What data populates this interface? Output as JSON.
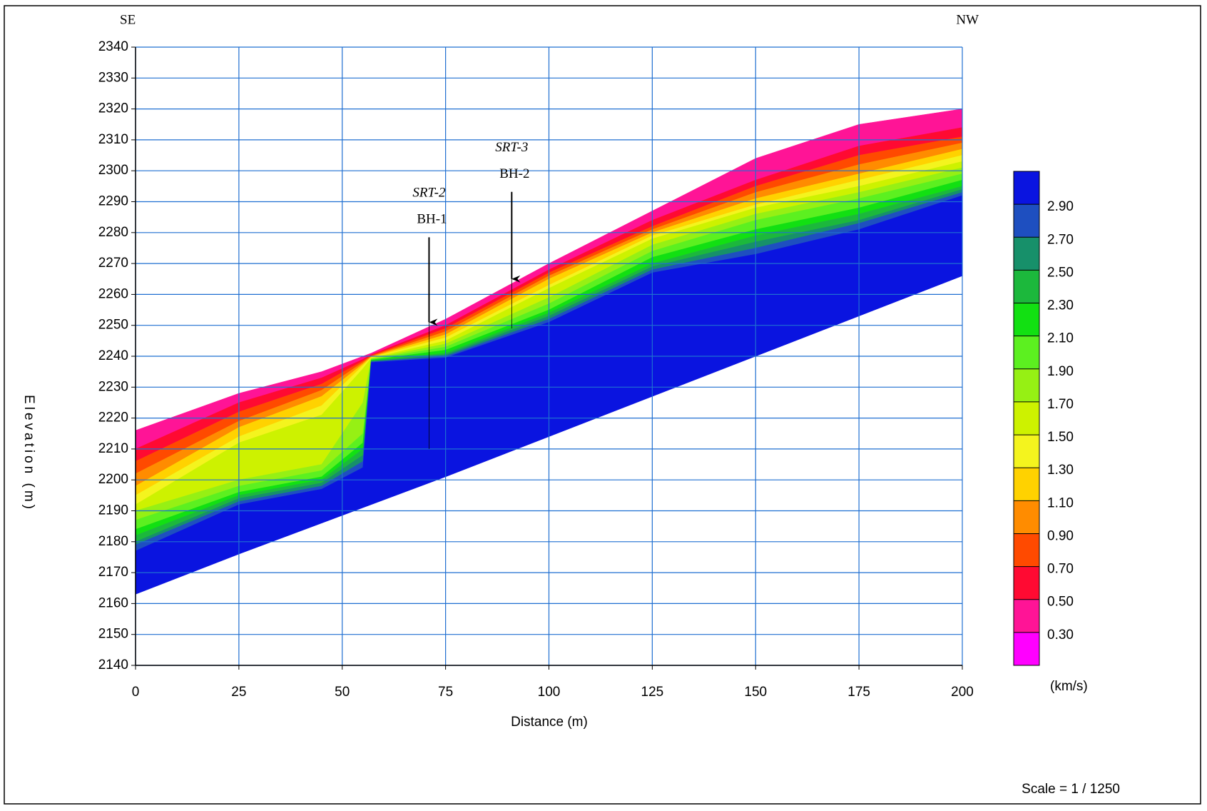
{
  "chart_data": {
    "type": "contour-section",
    "left_label": "SE",
    "right_label": "NW",
    "xlabel": "Distance (m)",
    "ylabel": "Elevation (m)",
    "scale_note": "Scale = 1 / 1250",
    "xlim": [
      0,
      200
    ],
    "xticks": [
      0,
      25,
      50,
      75,
      100,
      125,
      150,
      175,
      200
    ],
    "ylim": [
      2140,
      2340
    ],
    "yticks": [
      2140,
      2150,
      2160,
      2170,
      2180,
      2190,
      2200,
      2210,
      2220,
      2230,
      2240,
      2250,
      2260,
      2270,
      2280,
      2290,
      2300,
      2310,
      2320,
      2330,
      2340
    ],
    "grid": true,
    "grid_color": "#1f6fd1",
    "x": [
      0,
      25,
      45,
      55,
      57,
      75,
      100,
      125,
      150,
      175,
      200
    ],
    "surface": [
      2216,
      2228,
      2235,
      2240,
      2241,
      2252,
      2270,
      2287,
      2304,
      2315,
      2320
    ],
    "bottom": [
      2163,
      2176,
      2186,
      2191,
      2192,
      2201,
      2214,
      2227,
      2240,
      2253,
      2266
    ],
    "contours": [
      {
        "level": 0.5,
        "values": [
          2210,
          2225,
          2233,
          2239,
          2240.5,
          2250,
          2268,
          2284,
          2297,
          2308,
          2314
        ]
      },
      {
        "level": 0.7,
        "values": [
          2206,
          2222,
          2231,
          2238.5,
          2240.2,
          2249,
          2267,
          2282,
          2295,
          2305,
          2311
        ]
      },
      {
        "level": 0.9,
        "values": [
          2202,
          2219,
          2229,
          2238,
          2240,
          2248,
          2266,
          2281,
          2293,
          2302,
          2309
        ]
      },
      {
        "level": 1.1,
        "values": [
          2198,
          2217,
          2227,
          2237.5,
          2239.8,
          2247,
          2265,
          2280,
          2291,
          2299,
          2307
        ]
      },
      {
        "level": 1.3,
        "values": [
          2195,
          2214,
          2224,
          2237,
          2239.6,
          2246,
          2263,
          2279,
          2289,
          2297,
          2305
        ]
      },
      {
        "level": 1.5,
        "values": [
          2192,
          2212,
          2221,
          2236,
          2239.4,
          2245,
          2262,
          2278,
          2288,
          2295,
          2303
        ]
      },
      {
        "level": 1.7,
        "values": [
          2190,
          2200,
          2205,
          2225,
          2239.2,
          2244,
          2259,
          2276,
          2286,
          2293,
          2301
        ]
      },
      {
        "level": 1.9,
        "values": [
          2187,
          2198,
          2203,
          2215,
          2239,
          2243,
          2257,
          2274,
          2284,
          2291,
          2299
        ]
      },
      {
        "level": 2.1,
        "values": [
          2184,
          2196,
          2201,
          2212,
          2238.8,
          2242,
          2255,
          2272,
          2281,
          2288,
          2297
        ]
      },
      {
        "level": 2.3,
        "values": [
          2182,
          2195,
          2200,
          2210,
          2238.6,
          2241,
          2254,
          2270,
          2279,
          2286,
          2295
        ]
      },
      {
        "level": 2.5,
        "values": [
          2180,
          2194,
          2199,
          2208,
          2238.4,
          2240.5,
          2253,
          2269,
          2277,
          2284,
          2294
        ]
      },
      {
        "level": 2.7,
        "values": [
          2179,
          2193,
          2198,
          2206,
          2238.2,
          2240,
          2252,
          2268,
          2275,
          2283,
          2293
        ]
      },
      {
        "level": 2.9,
        "values": [
          2177,
          2192,
          2197,
          2204,
          2238,
          2239.5,
          2251,
          2267,
          2273,
          2281,
          2292
        ]
      }
    ],
    "colorbar": {
      "unit": "(km/s)",
      "ticks": [
        {
          "value": 2.9,
          "label": "2.90"
        },
        {
          "value": 2.7,
          "label": "2.70"
        },
        {
          "value": 2.5,
          "label": "2.50"
        },
        {
          "value": 2.3,
          "label": "2.30"
        },
        {
          "value": 2.1,
          "label": "2.10"
        },
        {
          "value": 1.9,
          "label": "1.90"
        },
        {
          "value": 1.7,
          "label": "1.70"
        },
        {
          "value": 1.5,
          "label": "1.50"
        },
        {
          "value": 1.3,
          "label": "1.30"
        },
        {
          "value": 1.1,
          "label": "1.10"
        },
        {
          "value": 0.9,
          "label": "0.90"
        },
        {
          "value": 0.7,
          "label": "0.70"
        },
        {
          "value": 0.5,
          "label": "0.50"
        },
        {
          "value": 0.3,
          "label": "0.30"
        }
      ],
      "colors": [
        "#0a14e0",
        "#1e4fc0",
        "#17906a",
        "#1cb83c",
        "#12e012",
        "#5cf020",
        "#96f014",
        "#cdf200",
        "#f4f41e",
        "#ffd200",
        "#ff8c00",
        "#ff4a00",
        "#ff0a32",
        "#ff1496",
        "#ff00ff"
      ]
    },
    "boreholes": [
      {
        "survey": "SRT-2",
        "name": "BH-1",
        "x": 71,
        "top": 2251,
        "bottom": 2210
      },
      {
        "survey": "SRT-3",
        "name": "BH-2",
        "x": 91,
        "top": 2265,
        "bottom": 2249
      }
    ]
  }
}
